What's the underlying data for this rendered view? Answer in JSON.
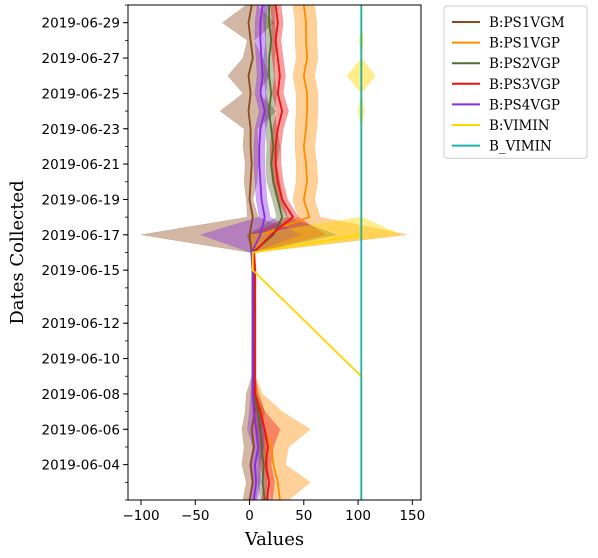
{
  "chart_data": {
    "type": "line",
    "orientation": "horizontal-values-vertical-dates",
    "xlabel": "Values",
    "ylabel": "Dates Collected",
    "xlim": [
      -112,
      158
    ],
    "ylim": [
      "2019-06-02",
      "2019-06-30"
    ],
    "x_ticks": [
      -100,
      -50,
      0,
      50,
      100,
      150
    ],
    "y_ticks": [
      "2019-06-04",
      "2019-06-06",
      "2019-06-08",
      "2019-06-10",
      "2019-06-12",
      "2019-06-15",
      "2019-06-17",
      "2019-06-19",
      "2019-06-21",
      "2019-06-23",
      "2019-06-25",
      "2019-06-27",
      "2019-06-29"
    ],
    "grid": false,
    "legend_position": "outside-right",
    "dates": [
      "2019-06-02",
      "2019-06-03",
      "2019-06-04",
      "2019-06-05",
      "2019-06-06",
      "2019-06-07",
      "2019-06-08",
      "2019-06-09",
      "2019-06-15",
      "2019-06-16",
      "2019-06-17",
      "2019-06-18",
      "2019-06-19",
      "2019-06-20",
      "2019-06-21",
      "2019-06-22",
      "2019-06-23",
      "2019-06-24",
      "2019-06-25",
      "2019-06-26",
      "2019-06-27",
      "2019-06-28",
      "2019-06-29",
      "2019-06-30"
    ],
    "series": [
      {
        "name": "B:PS1VGM",
        "color": "#8c4a1c",
        "mean": [
          0,
          3,
          1,
          4,
          2,
          5,
          3,
          3,
          3,
          2,
          0,
          3,
          0,
          1,
          2,
          1,
          1,
          -1,
          1,
          -1,
          3,
          1,
          -1,
          2
        ],
        "lower": [
          -6,
          -3,
          -7,
          -5,
          -7,
          -4,
          -3,
          2,
          2,
          1,
          -100,
          -2,
          -3,
          -5,
          -4,
          -6,
          -5,
          -27,
          -6,
          -20,
          -6,
          -2,
          -25,
          -3
        ],
        "upper": [
          6,
          9,
          9,
          13,
          11,
          14,
          9,
          4,
          4,
          3,
          48,
          8,
          3,
          7,
          8,
          8,
          7,
          25,
          8,
          18,
          12,
          4,
          23,
          7
        ]
      },
      {
        "name": "B:PS1VGP",
        "color": "#ff8c00",
        "mean": [
          28,
          26,
          22,
          20,
          14,
          10,
          5,
          4,
          5,
          4,
          10,
          55,
          50,
          53,
          52,
          50,
          52,
          53,
          53,
          50,
          53,
          52,
          52,
          50
        ],
        "lower": [
          20,
          18,
          12,
          8,
          4,
          2,
          2,
          3,
          4,
          3,
          -3,
          45,
          40,
          43,
          43,
          42,
          42,
          43,
          43,
          40,
          43,
          42,
          42,
          40
        ],
        "upper": [
          36,
          56,
          33,
          36,
          56,
          30,
          12,
          5,
          6,
          5,
          145,
          65,
          60,
          63,
          62,
          60,
          62,
          63,
          63,
          60,
          63,
          62,
          62,
          60
        ]
      },
      {
        "name": "B:PS2VGP",
        "color": "#556b2f",
        "mean": [
          14,
          12,
          13,
          11,
          10,
          8,
          4,
          4,
          4,
          3,
          22,
          30,
          26,
          22,
          20,
          22,
          20,
          18,
          20,
          18,
          18,
          20,
          18,
          18
        ],
        "lower": [
          10,
          8,
          9,
          7,
          6,
          5,
          2,
          3,
          3,
          2,
          -2,
          25,
          21,
          16,
          15,
          16,
          15,
          13,
          15,
          13,
          13,
          15,
          13,
          13
        ],
        "upper": [
          18,
          16,
          17,
          15,
          14,
          11,
          6,
          5,
          5,
          4,
          80,
          35,
          31,
          28,
          25,
          28,
          25,
          23,
          25,
          23,
          23,
          25,
          23,
          23
        ]
      },
      {
        "name": "B:PS3VGP",
        "color": "#ee1111",
        "mean": [
          16,
          18,
          15,
          17,
          14,
          10,
          5,
          5,
          5,
          4,
          20,
          40,
          30,
          26,
          24,
          24,
          26,
          30,
          26,
          28,
          26,
          24,
          26,
          24
        ],
        "lower": [
          11,
          13,
          10,
          12,
          8,
          6,
          3,
          4,
          4,
          3,
          0,
          35,
          25,
          21,
          19,
          19,
          21,
          25,
          21,
          23,
          21,
          19,
          21,
          19
        ],
        "upper": [
          21,
          23,
          20,
          22,
          28,
          14,
          7,
          6,
          6,
          5,
          70,
          45,
          35,
          31,
          29,
          29,
          31,
          36,
          31,
          33,
          31,
          29,
          31,
          29
        ]
      },
      {
        "name": "B:PS4VGP",
        "color": "#8a2be2",
        "mean": [
          4,
          6,
          5,
          8,
          6,
          4,
          3,
          3,
          3,
          2,
          10,
          14,
          11,
          10,
          9,
          9,
          10,
          14,
          10,
          12,
          11,
          10,
          10,
          12
        ],
        "lower": [
          0,
          2,
          0,
          3,
          -2,
          0,
          1,
          2,
          2,
          1,
          -45,
          9,
          6,
          5,
          4,
          4,
          5,
          9,
          5,
          7,
          6,
          5,
          5,
          7
        ],
        "upper": [
          8,
          10,
          10,
          13,
          14,
          8,
          5,
          4,
          4,
          3,
          45,
          19,
          16,
          15,
          14,
          14,
          15,
          19,
          15,
          17,
          16,
          15,
          15,
          17
        ]
      },
      {
        "name": "B:VIMIN",
        "color": "#ffd700",
        "mean": [
          103,
          103,
          103,
          103,
          103,
          103,
          103,
          103,
          3,
          3,
          103,
          103,
          103,
          103,
          103,
          103,
          103,
          103,
          103,
          103,
          103,
          103,
          103,
          103
        ],
        "lower": [
          103,
          103,
          103,
          103,
          103,
          103,
          103,
          103,
          2,
          2,
          0,
          103,
          103,
          103,
          103,
          103,
          103,
          100,
          103,
          90,
          103,
          101,
          103,
          103
        ],
        "upper": [
          103,
          103,
          103,
          103,
          103,
          103,
          103,
          103,
          4,
          4,
          140,
          103,
          103,
          103,
          103,
          103,
          103,
          106,
          103,
          116,
          103,
          105,
          103,
          103
        ]
      },
      {
        "name": "B_VIMIN",
        "color": "#20b2aa",
        "mean": [
          103,
          103,
          103,
          103,
          103,
          103,
          103,
          103,
          103,
          103,
          103,
          103,
          103,
          103,
          103,
          103,
          103,
          103,
          103,
          103,
          103,
          103,
          103,
          103
        ],
        "lower": [
          103,
          103,
          103,
          103,
          103,
          103,
          103,
          103,
          103,
          103,
          103,
          103,
          103,
          103,
          103,
          103,
          103,
          103,
          103,
          103,
          103,
          103,
          103,
          103
        ],
        "upper": [
          103,
          103,
          103,
          103,
          103,
          103,
          103,
          103,
          103,
          103,
          103,
          103,
          103,
          103,
          103,
          103,
          103,
          103,
          103,
          103,
          103,
          103,
          103,
          103
        ]
      }
    ]
  }
}
